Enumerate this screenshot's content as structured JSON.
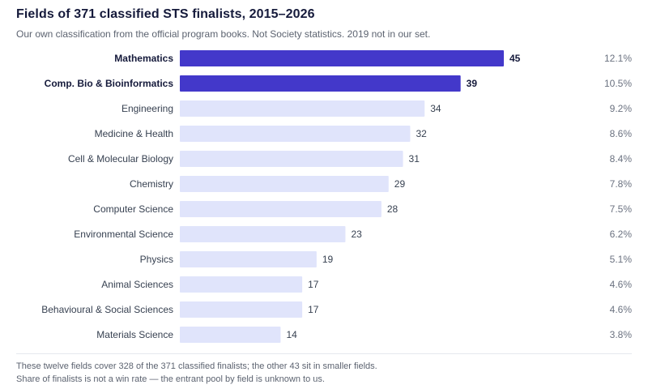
{
  "header": {
    "title": "Fields of 371 classified STS finalists, 2015–2026",
    "subtitle": "Our own classification from the official program books. Not Society statistics. 2019 not in our set."
  },
  "chart_data": {
    "type": "bar",
    "orientation": "horizontal",
    "categories": [
      "Mathematics",
      "Comp. Bio & Bioinformatics",
      "Engineering",
      "Medicine & Health",
      "Cell & Molecular Biology",
      "Chemistry",
      "Computer Science",
      "Environmental Science",
      "Physics",
      "Animal Sciences",
      "Behavioural & Social Sciences",
      "Materials Science"
    ],
    "values": [
      45,
      39,
      34,
      32,
      31,
      29,
      28,
      23,
      19,
      17,
      17,
      14
    ],
    "shares": [
      "12.1%",
      "10.5%",
      "9.2%",
      "8.6%",
      "8.4%",
      "7.8%",
      "7.5%",
      "6.2%",
      "5.1%",
      "4.6%",
      "4.6%",
      "3.8%"
    ],
    "highlighted": [
      true,
      true,
      false,
      false,
      false,
      false,
      false,
      false,
      false,
      false,
      false,
      false
    ],
    "xlim": [
      0,
      45
    ],
    "grid": false,
    "colors": {
      "highlight": "#4338ca",
      "default": "#e0e4fb",
      "label": "#374151",
      "label_highlight": "#151a3b",
      "share": "#6b7280"
    }
  },
  "footer": {
    "note_1": "These twelve fields cover 328 of the 371 classified finalists; the other 43 sit in smaller fields.",
    "note_2": "Share of finalists is not a win rate — the entrant pool by field is unknown to us."
  }
}
